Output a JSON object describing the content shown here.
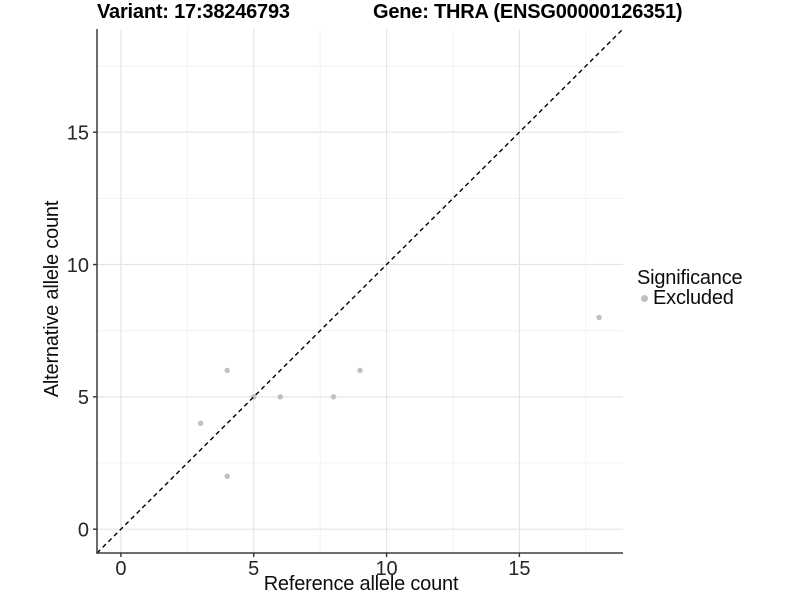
{
  "titles": {
    "variant": "Variant: 17:38246793",
    "gene": "Gene: THRA (ENSG00000126351)"
  },
  "chart_data": {
    "type": "scatter",
    "title": "Variant: 17:38246793   Gene: THRA (ENSG00000126351)",
    "xlabel": "Reference allele count",
    "ylabel": "Alternative allele count",
    "xlim": [
      -0.9,
      18.9
    ],
    "ylim": [
      -0.9,
      18.9
    ],
    "xticks": [
      0,
      5,
      10,
      15
    ],
    "yticks": [
      0,
      5,
      10,
      15
    ],
    "x_minor_gridlines": [
      2.5,
      7.5,
      12.5,
      17.5
    ],
    "y_minor_gridlines": [
      2.5,
      7.5,
      12.5,
      17.5
    ],
    "grid": "on",
    "legend_position": "right",
    "series": [
      {
        "name": "Excluded",
        "color": "#bfbfbf",
        "points": [
          {
            "x": 3,
            "y": 4
          },
          {
            "x": 4,
            "y": 2
          },
          {
            "x": 4,
            "y": 6
          },
          {
            "x": 5,
            "y": 5
          },
          {
            "x": 6,
            "y": 5
          },
          {
            "x": 8,
            "y": 5
          },
          {
            "x": 9,
            "y": 6
          },
          {
            "x": 18,
            "y": 8
          }
        ]
      }
    ],
    "reference_line": {
      "slope": 1,
      "intercept": 0,
      "style": "dashed",
      "color": "#000000"
    }
  },
  "legend": {
    "title": "Significance",
    "entries": [
      {
        "label": "Excluded",
        "color": "#bfbfbf"
      }
    ]
  },
  "colors": {
    "background": "#ffffff",
    "grid_major": "#e5e5e5",
    "grid_minor": "#efefef",
    "axis_line": "#3d3d3d",
    "tick_mark": "#333333",
    "tick_label": "#262626",
    "point": "#bfbfbf",
    "reference_line": "#000000"
  }
}
